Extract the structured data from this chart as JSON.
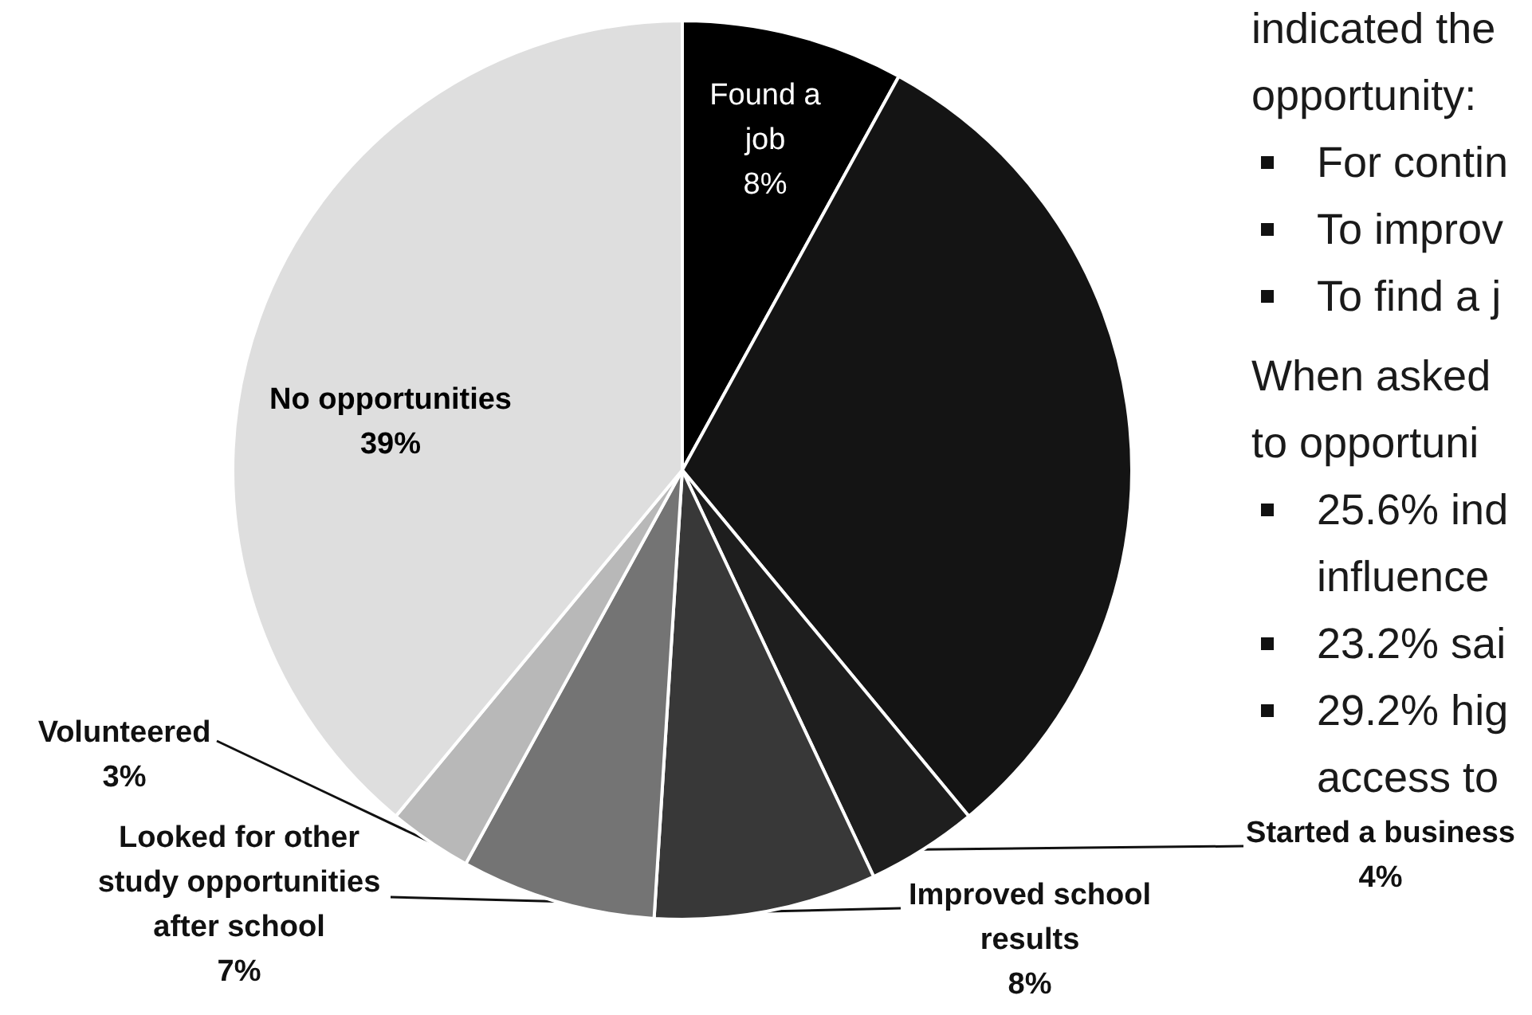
{
  "chart_data": {
    "type": "pie",
    "categories": [
      "Found a job",
      null,
      "Started a business",
      "Improved school results",
      "Looked for other study opportunities after school",
      "Volunteered",
      "No opportunities"
    ],
    "values": [
      8,
      31,
      4,
      8,
      7,
      3,
      39
    ],
    "value_labels": [
      "8%",
      null,
      "4%",
      "8%",
      "7%",
      "3%",
      "39%"
    ],
    "colors": [
      "#000000",
      "#141414",
      "#1e1e1e",
      "#383838",
      "#747474",
      "#b8b8b8",
      "#dedede"
    ],
    "annotations": [
      "indicated the\nopportunity:",
      "For contin",
      "To improv",
      "To find a j",
      "When asked\nto opportuni",
      "25.6% ind\ninfluence",
      "23.2% sai",
      "29.2% hig\naccess to"
    ]
  }
}
